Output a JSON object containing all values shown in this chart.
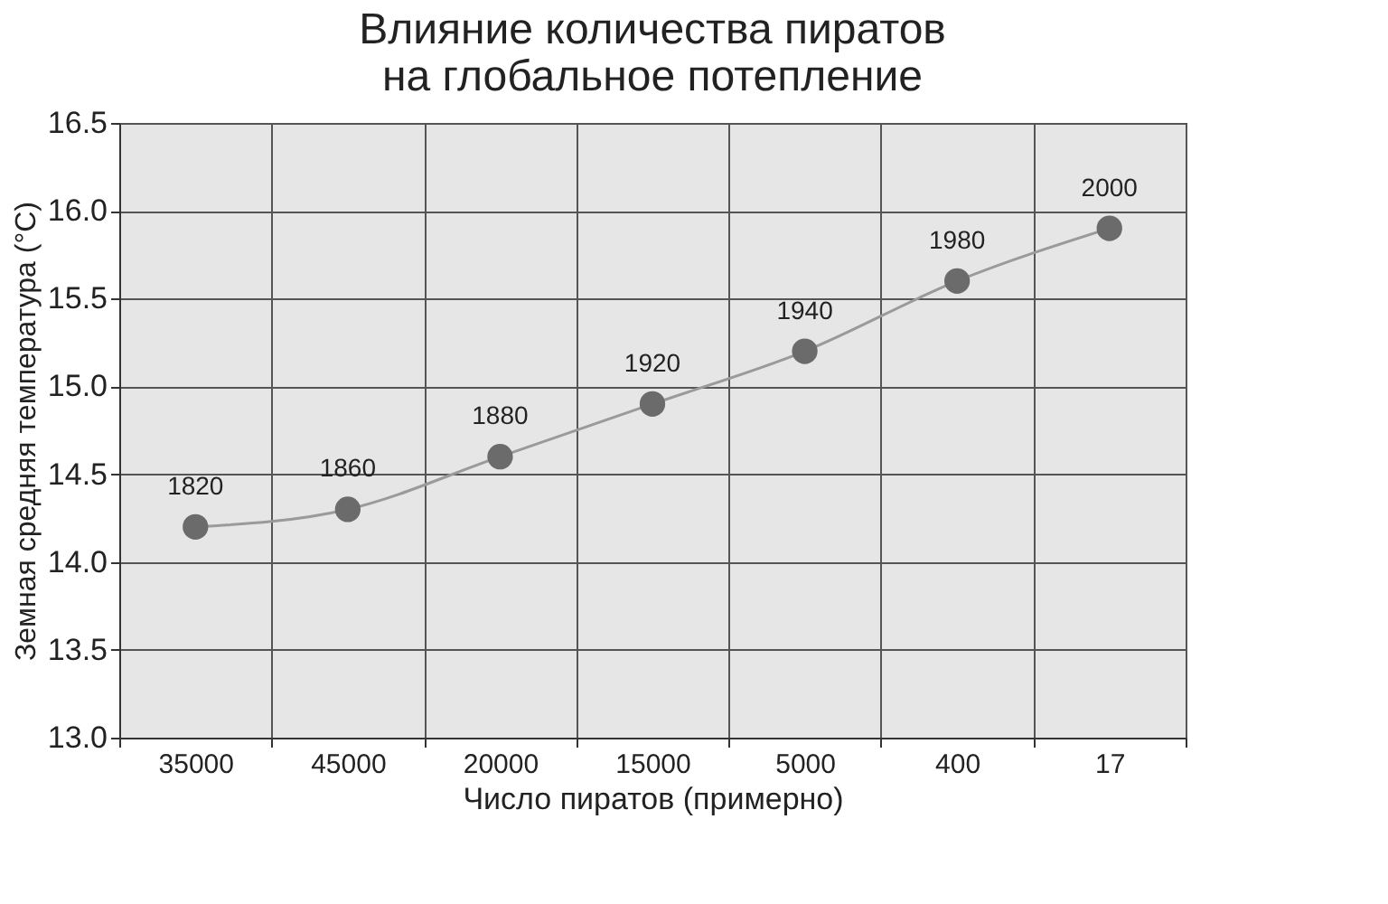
{
  "chart_data": {
    "type": "line",
    "title": "Влияние количества пиратов\nна глобальное потепление",
    "xlabel": "Число пиратов (примерно)",
    "ylabel": "Земная средняя температура (°C)",
    "categories": [
      "35000",
      "45000",
      "20000",
      "15000",
      "5000",
      "400",
      "17"
    ],
    "series": [
      {
        "color": "#6b6b6b",
        "values": [
          14.2,
          14.3,
          14.6,
          14.9,
          15.2,
          15.6,
          15.9
        ]
      }
    ],
    "ylim": [
      13.0,
      16.5
    ],
    "yticks": [
      {
        "value": 13,
        "label": "13.0"
      },
      {
        "value": 13.5,
        "label": "13.5"
      },
      {
        "value": 14,
        "label": "14.0"
      },
      {
        "value": 14.5,
        "label": "14.5"
      },
      {
        "value": 15,
        "label": "15.0"
      },
      {
        "value": 15.5,
        "label": "15.5"
      },
      {
        "value": 16,
        "label": "16.0"
      },
      {
        "value": 16.5,
        "label": "16.5"
      }
    ],
    "annotations": [
      {
        "text": "1820",
        "x": "35000",
        "y": 14.2
      },
      {
        "text": "1860",
        "x": "45000",
        "y": 14.3
      },
      {
        "text": "1880",
        "x": "20000",
        "y": 14.6
      },
      {
        "text": "1920",
        "x": "15000",
        "y": 14.9
      },
      {
        "text": "1940",
        "x": "5000",
        "y": 15.2
      },
      {
        "text": "1980",
        "x": "400",
        "y": 15.6
      },
      {
        "text": "2000",
        "x": "17",
        "y": 15.9
      }
    ],
    "grid": true,
    "marker": "circle",
    "line_style": "solid"
  }
}
